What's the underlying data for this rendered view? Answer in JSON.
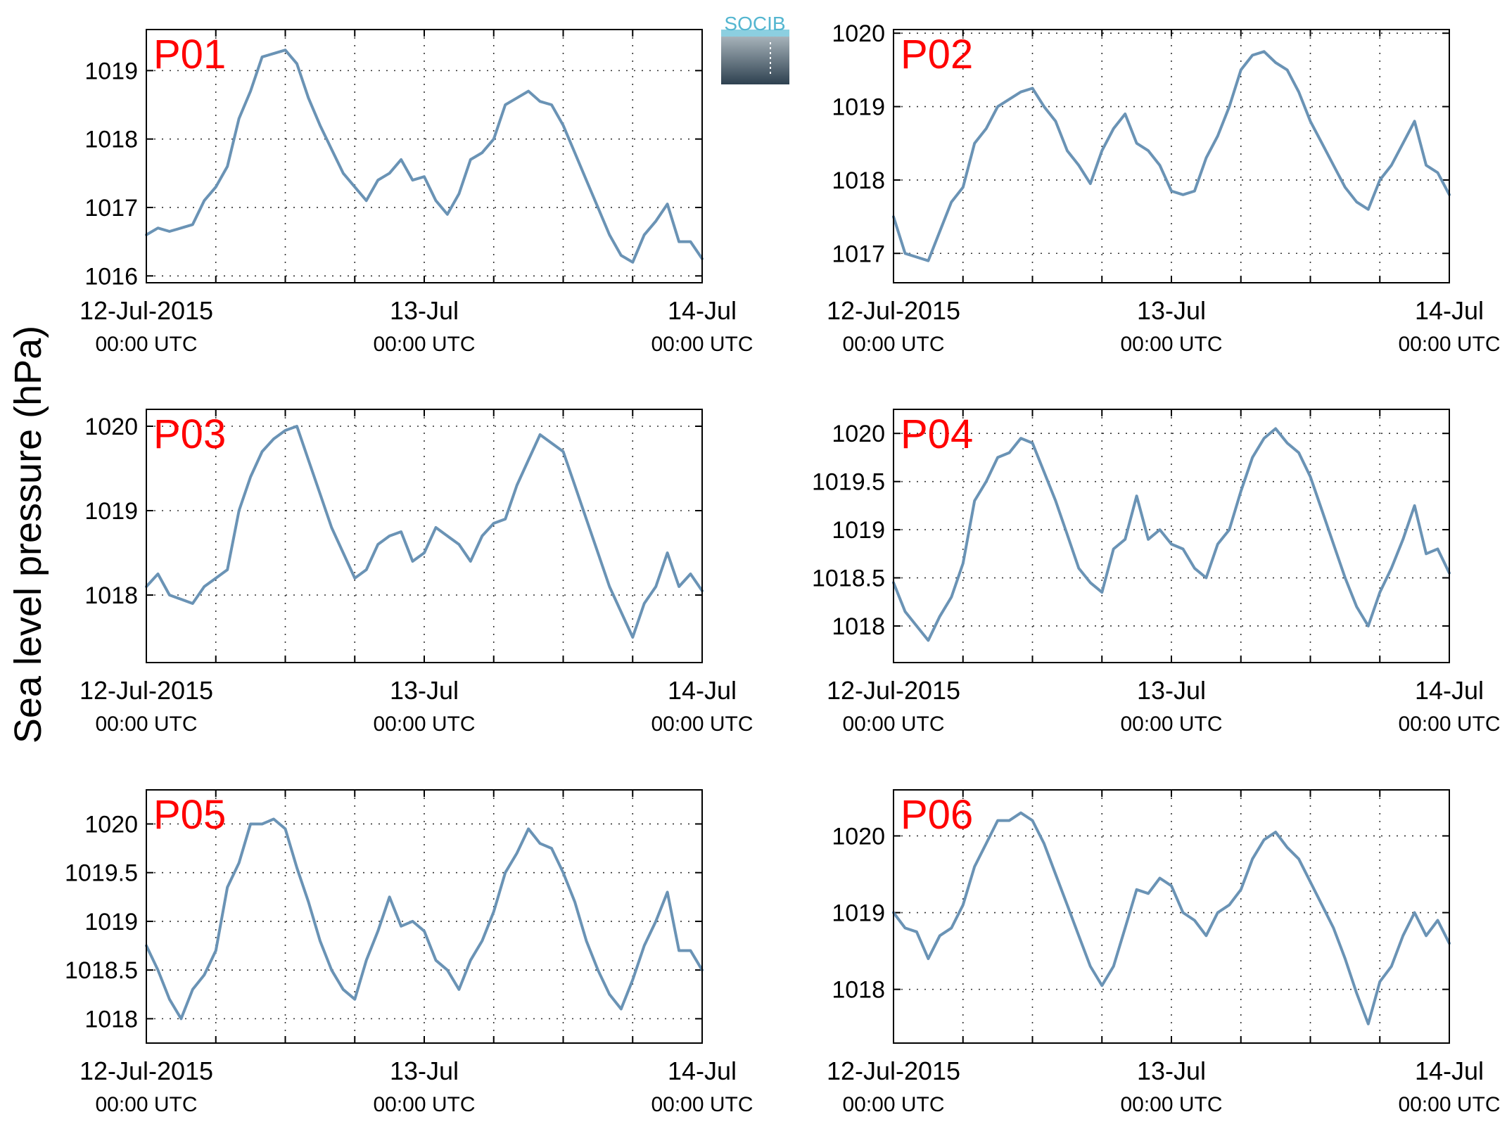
{
  "figure": {
    "ylabel": "Sea level pressure (hPa)",
    "logo_text": "SOCIB",
    "line_color": "#6a93b5",
    "panel_label_color": "#ff0000",
    "x_ticks": [
      {
        "hour": 0,
        "line1": "12-Jul-2015",
        "line2": "00:00 UTC"
      },
      {
        "hour": 24,
        "line1": "13-Jul",
        "line2": "00:00 UTC"
      },
      {
        "hour": 48,
        "line1": "14-Jul",
        "line2": "00:00 UTC"
      }
    ],
    "x_grid_hours": [
      6,
      12,
      18,
      24,
      30,
      36,
      42
    ]
  },
  "chart_data": [
    {
      "type": "line",
      "label": "P01",
      "xlim": [
        0,
        48
      ],
      "ylim": [
        1015.9,
        1019.6
      ],
      "yticks": [
        "1016",
        "1017",
        "1018",
        "1019"
      ],
      "grid": true,
      "x_unit": "hours since 12-Jul-2015 00:00 UTC",
      "x": [
        0,
        1,
        2,
        3,
        4,
        5,
        6,
        7,
        8,
        9,
        10,
        11,
        12,
        13,
        14,
        15,
        16,
        17,
        18,
        19,
        20,
        21,
        22,
        23,
        24,
        25,
        26,
        27,
        28,
        29,
        30,
        31,
        32,
        33,
        34,
        35,
        36,
        37,
        38,
        39,
        40,
        41,
        42,
        43,
        44,
        45,
        46,
        47,
        48
      ],
      "y": [
        1016.6,
        1016.7,
        1016.65,
        1016.7,
        1016.75,
        1017.1,
        1017.3,
        1017.6,
        1018.3,
        1018.7,
        1019.2,
        1019.25,
        1019.3,
        1019.1,
        1018.6,
        1018.2,
        1017.85,
        1017.5,
        1017.3,
        1017.1,
        1017.4,
        1017.5,
        1017.7,
        1017.4,
        1017.45,
        1017.1,
        1016.9,
        1017.2,
        1017.7,
        1017.8,
        1018.0,
        1018.5,
        1018.6,
        1018.7,
        1018.55,
        1018.5,
        1018.2,
        1017.8,
        1017.4,
        1017.0,
        1016.6,
        1016.3,
        1016.2,
        1016.6,
        1016.8,
        1017.05,
        1016.5,
        1016.5,
        1016.25
      ]
    },
    {
      "type": "line",
      "label": "P02",
      "xlim": [
        0,
        48
      ],
      "ylim": [
        1016.6,
        1020.05
      ],
      "yticks": [
        "1017",
        "1018",
        "1019",
        "1020"
      ],
      "grid": true,
      "x_unit": "hours since 12-Jul-2015 00:00 UTC",
      "x": [
        0,
        1,
        2,
        3,
        4,
        5,
        6,
        7,
        8,
        9,
        10,
        11,
        12,
        13,
        14,
        15,
        16,
        17,
        18,
        19,
        20,
        21,
        22,
        23,
        24,
        25,
        26,
        27,
        28,
        29,
        30,
        31,
        32,
        33,
        34,
        35,
        36,
        37,
        38,
        39,
        40,
        41,
        42,
        43,
        44,
        45,
        46,
        47,
        48
      ],
      "y": [
        1017.5,
        1017.0,
        1016.95,
        1016.9,
        1017.3,
        1017.7,
        1017.9,
        1018.5,
        1018.7,
        1019.0,
        1019.1,
        1019.2,
        1019.25,
        1019.0,
        1018.8,
        1018.4,
        1018.2,
        1017.95,
        1018.4,
        1018.7,
        1018.9,
        1018.5,
        1018.4,
        1018.2,
        1017.85,
        1017.8,
        1017.85,
        1018.3,
        1018.6,
        1019.0,
        1019.5,
        1019.7,
        1019.75,
        1019.6,
        1019.5,
        1019.2,
        1018.8,
        1018.5,
        1018.2,
        1017.9,
        1017.7,
        1017.6,
        1018.0,
        1018.2,
        1018.5,
        1018.8,
        1018.2,
        1018.1,
        1017.8
      ]
    },
    {
      "type": "line",
      "label": "P03",
      "xlim": [
        0,
        48
      ],
      "ylim": [
        1017.2,
        1020.2
      ],
      "yticks": [
        "1018",
        "1019",
        "1020"
      ],
      "grid": true,
      "x_unit": "hours since 12-Jul-2015 00:00 UTC",
      "x": [
        0,
        1,
        2,
        3,
        4,
        5,
        6,
        7,
        8,
        9,
        10,
        11,
        12,
        13,
        14,
        15,
        16,
        17,
        18,
        19,
        20,
        21,
        22,
        23,
        24,
        25,
        26,
        27,
        28,
        29,
        30,
        31,
        32,
        33,
        34,
        35,
        36,
        37,
        38,
        39,
        40,
        41,
        42,
        43,
        44,
        45,
        46,
        47,
        48
      ],
      "y": [
        1018.1,
        1018.25,
        1018.0,
        1017.95,
        1017.9,
        1018.1,
        1018.2,
        1018.3,
        1019.0,
        1019.4,
        1019.7,
        1019.85,
        1019.95,
        1020.0,
        1019.6,
        1019.2,
        1018.8,
        1018.5,
        1018.2,
        1018.3,
        1018.6,
        1018.7,
        1018.75,
        1018.4,
        1018.5,
        1018.8,
        1018.7,
        1018.6,
        1018.4,
        1018.7,
        1018.85,
        1018.9,
        1019.3,
        1019.6,
        1019.9,
        1019.8,
        1019.7,
        1019.3,
        1018.9,
        1018.5,
        1018.1,
        1017.8,
        1017.5,
        1017.9,
        1018.1,
        1018.5,
        1018.1,
        1018.25,
        1018.05
      ]
    },
    {
      "type": "line",
      "label": "P04",
      "xlim": [
        0,
        48
      ],
      "ylim": [
        1017.62,
        1020.25
      ],
      "yticks": [
        "1018",
        "1018.5",
        "1019",
        "1019.5",
        "1020"
      ],
      "grid": true,
      "x_unit": "hours since 12-Jul-2015 00:00 UTC",
      "x": [
        0,
        1,
        2,
        3,
        4,
        5,
        6,
        7,
        8,
        9,
        10,
        11,
        12,
        13,
        14,
        15,
        16,
        17,
        18,
        19,
        20,
        21,
        22,
        23,
        24,
        25,
        26,
        27,
        28,
        29,
        30,
        31,
        32,
        33,
        34,
        35,
        36,
        37,
        38,
        39,
        40,
        41,
        42,
        43,
        44,
        45,
        46,
        47,
        48
      ],
      "y": [
        1018.45,
        1018.15,
        1018.0,
        1017.85,
        1018.1,
        1018.3,
        1018.65,
        1019.3,
        1019.5,
        1019.75,
        1019.8,
        1019.95,
        1019.9,
        1019.6,
        1019.3,
        1018.95,
        1018.6,
        1018.45,
        1018.35,
        1018.8,
        1018.9,
        1019.35,
        1018.9,
        1019.0,
        1018.85,
        1018.8,
        1018.6,
        1018.5,
        1018.85,
        1019.0,
        1019.4,
        1019.75,
        1019.95,
        1020.05,
        1019.9,
        1019.8,
        1019.55,
        1019.2,
        1018.85,
        1018.5,
        1018.2,
        1018.0,
        1018.35,
        1018.6,
        1018.9,
        1019.25,
        1018.75,
        1018.8,
        1018.55
      ]
    },
    {
      "type": "line",
      "label": "P05",
      "xlim": [
        0,
        48
      ],
      "ylim": [
        1017.75,
        1020.35
      ],
      "yticks": [
        "1018",
        "1018.5",
        "1019",
        "1019.5",
        "1020"
      ],
      "grid": true,
      "x_unit": "hours since 12-Jul-2015 00:00 UTC",
      "x": [
        0,
        1,
        2,
        3,
        4,
        5,
        6,
        7,
        8,
        9,
        10,
        11,
        12,
        13,
        14,
        15,
        16,
        17,
        18,
        19,
        20,
        21,
        22,
        23,
        24,
        25,
        26,
        27,
        28,
        29,
        30,
        31,
        32,
        33,
        34,
        35,
        36,
        37,
        38,
        39,
        40,
        41,
        42,
        43,
        44,
        45,
        46,
        47,
        48
      ],
      "y": [
        1018.75,
        1018.5,
        1018.2,
        1018.0,
        1018.3,
        1018.45,
        1018.7,
        1019.35,
        1019.6,
        1020.0,
        1020.0,
        1020.05,
        1019.95,
        1019.55,
        1019.2,
        1018.8,
        1018.5,
        1018.3,
        1018.2,
        1018.6,
        1018.9,
        1019.25,
        1018.95,
        1019.0,
        1018.9,
        1018.6,
        1018.5,
        1018.3,
        1018.6,
        1018.8,
        1019.1,
        1019.5,
        1019.7,
        1019.95,
        1019.8,
        1019.75,
        1019.5,
        1019.2,
        1018.8,
        1018.5,
        1018.25,
        1018.1,
        1018.4,
        1018.75,
        1019.0,
        1019.3,
        1018.7,
        1018.7,
        1018.5
      ]
    },
    {
      "type": "line",
      "label": "P06",
      "xlim": [
        0,
        48
      ],
      "ylim": [
        1017.3,
        1020.6
      ],
      "yticks": [
        "1018",
        "1019",
        "1020"
      ],
      "grid": true,
      "x_unit": "hours since 12-Jul-2015 00:00 UTC",
      "x": [
        0,
        1,
        2,
        3,
        4,
        5,
        6,
        7,
        8,
        9,
        10,
        11,
        12,
        13,
        14,
        15,
        16,
        17,
        18,
        19,
        20,
        21,
        22,
        23,
        24,
        25,
        26,
        27,
        28,
        29,
        30,
        31,
        32,
        33,
        34,
        35,
        36,
        37,
        38,
        39,
        40,
        41,
        42,
        43,
        44,
        45,
        46,
        47,
        48
      ],
      "y": [
        1019.0,
        1018.8,
        1018.75,
        1018.4,
        1018.7,
        1018.8,
        1019.1,
        1019.6,
        1019.9,
        1020.2,
        1020.2,
        1020.3,
        1020.2,
        1019.9,
        1019.5,
        1019.1,
        1018.7,
        1018.3,
        1018.05,
        1018.3,
        1018.8,
        1019.3,
        1019.25,
        1019.45,
        1019.35,
        1019.0,
        1018.9,
        1018.7,
        1019.0,
        1019.1,
        1019.3,
        1019.7,
        1019.95,
        1020.05,
        1019.85,
        1019.7,
        1019.4,
        1019.1,
        1018.8,
        1018.4,
        1017.95,
        1017.55,
        1018.1,
        1018.3,
        1018.7,
        1019.0,
        1018.7,
        1018.9,
        1018.6
      ]
    }
  ]
}
